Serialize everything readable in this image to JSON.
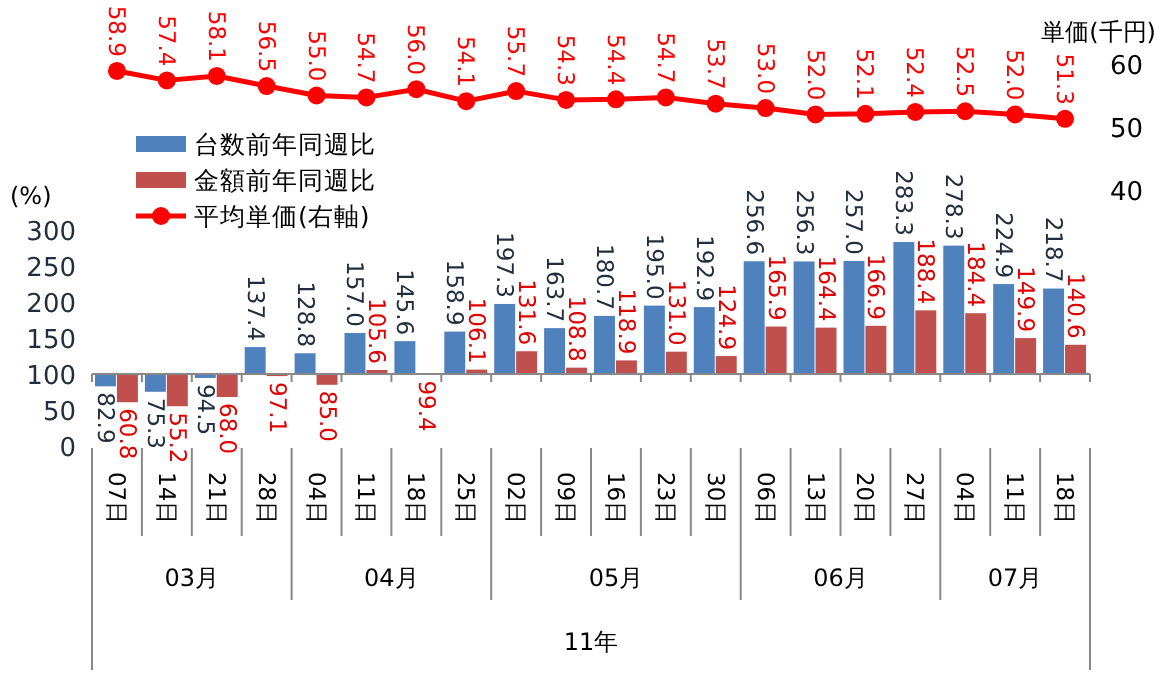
{
  "chart_data": [
    {
      "type": "line",
      "categories": [
        null,
        null,
        null,
        null,
        null,
        null,
        null,
        null,
        null,
        null,
        null,
        null,
        null,
        null,
        null,
        null,
        null,
        null,
        null,
        null
      ],
      "series": [
        {
          "name": "平均単価(右軸)",
          "color": "#ff0000",
          "marker": "circle",
          "values": [
            58.9,
            57.4,
            58.1,
            56.5,
            55.0,
            54.7,
            56.0,
            54.1,
            55.7,
            54.3,
            54.4,
            54.7,
            53.7,
            53.0,
            52.0,
            52.1,
            52.4,
            52.5,
            52.0,
            51.3
          ],
          "value_labels": [
            "58.9",
            "57.4",
            "58.1",
            "56.5",
            "55.0",
            "54.7",
            "56.0",
            "54.1",
            "55.7",
            "54.3",
            "54.4",
            "54.7",
            "53.7",
            "53.0",
            "52.0",
            "52.1",
            "52.4",
            "52.5",
            "52.0",
            "51.3"
          ]
        }
      ],
      "ylabel": "単価(千円)",
      "ylim": [
        40,
        60
      ],
      "yticks": [
        40,
        50,
        60
      ],
      "tick_labels": "y",
      "legend": "bottom left"
    },
    {
      "type": "bar",
      "categories": [
        "07日",
        "14日",
        "21日",
        "28日",
        "04日",
        "11日",
        "18日",
        "25日",
        "02日",
        "09日",
        "16日",
        "23日",
        "30日",
        "06日",
        "13日",
        "20日",
        "27日",
        "04日",
        "11日",
        "18日"
      ],
      "series": [
        {
          "name": "台数前年同週比",
          "color": "#4f81bd",
          "base": [
            100,
            100,
            100,
            100,
            100,
            100,
            100,
            100,
            100,
            100,
            100,
            100,
            100,
            100,
            100,
            100,
            100,
            100,
            100,
            100
          ],
          "values": [
            -17.1,
            -24.7,
            -5.5,
            37.4,
            28.8,
            57.0,
            45.6,
            58.9,
            97.3,
            63.7,
            80.7,
            95.0,
            92.9,
            156.6,
            156.3,
            157.0,
            183.3,
            178.3,
            124.9,
            118.7
          ],
          "value_labels": [
            "82.9",
            "75.3",
            "94.5",
            "137.4",
            "128.8",
            "157.0",
            "145.6",
            "158.9",
            "197.3",
            "163.7",
            "180.7",
            "195.0",
            "192.9",
            "256.6",
            "256.3",
            "257.0",
            "283.3",
            "278.3",
            "224.9",
            "218.7"
          ]
        },
        {
          "name": "金額前年同週比",
          "color": "#c0504d",
          "base": [
            100,
            100,
            100,
            100,
            100,
            100,
            100,
            100,
            100,
            100,
            100,
            100,
            100,
            100,
            100,
            100,
            100,
            100,
            100,
            100
          ],
          "values": [
            -39.2,
            -44.8,
            -32.0,
            -2.9,
            -15.0,
            5.6,
            -0.6,
            6.1,
            31.6,
            8.8,
            18.9,
            31.0,
            24.9,
            65.9,
            64.4,
            66.9,
            88.4,
            84.4,
            49.9,
            40.6
          ],
          "value_labels": [
            "60.8",
            "55.2",
            "68.0",
            "97.1",
            "85.0",
            "105.6",
            "99.4",
            "106.1",
            "131.6",
            "108.8",
            "118.9",
            "131.0",
            "124.9",
            "165.9",
            "164.4",
            "166.9",
            "188.4",
            "184.4",
            "149.9",
            "140.6"
          ]
        }
      ],
      "ylabel": "(%)",
      "ylim": [
        0,
        300
      ],
      "yticks": [
        0,
        50,
        100,
        150,
        200,
        250,
        300
      ],
      "annotations": [
        "03月",
        "04月",
        "05月",
        "06月",
        "07月",
        "11年"
      ],
      "legend": "top left"
    }
  ]
}
